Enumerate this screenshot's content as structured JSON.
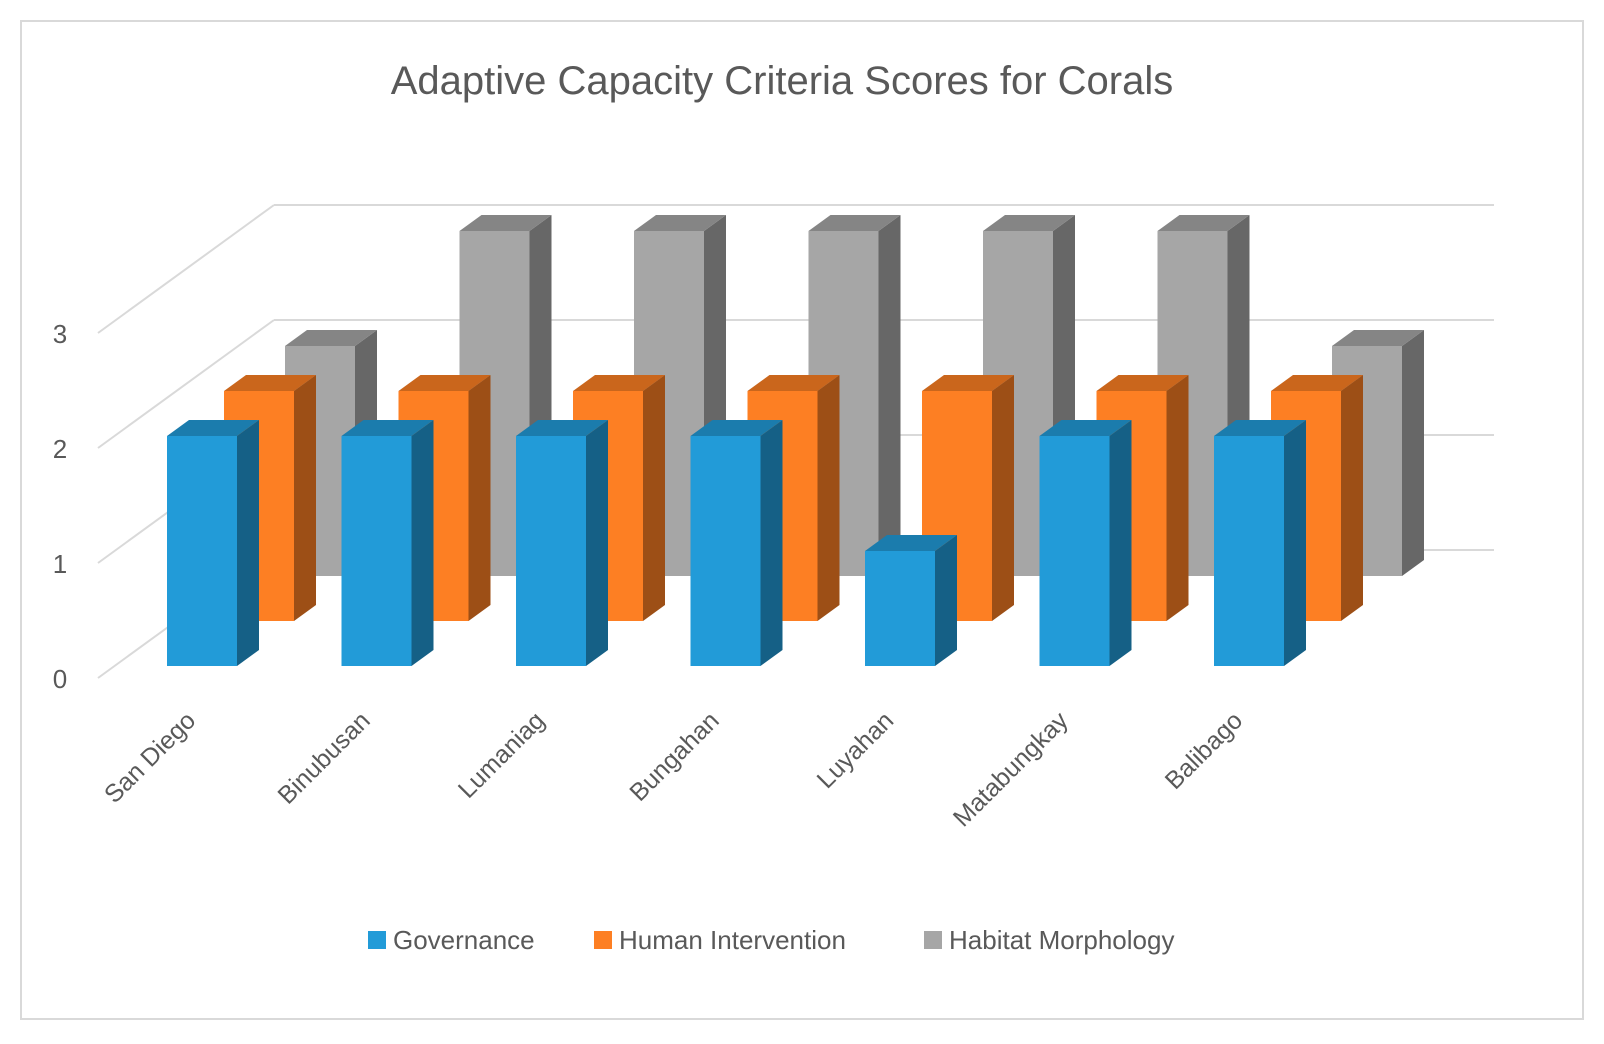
{
  "chart_data": {
    "type": "bar",
    "subtype": "3d-column",
    "title": "Adaptive Capacity Criteria Scores for Corals",
    "categories": [
      "San Diego",
      "Binubusan",
      "Lumaniag",
      "Bungahan",
      "Luyahan",
      "Matabungkay",
      "Balibago"
    ],
    "series": [
      {
        "name": "Governance",
        "color": "#229bd8",
        "values": [
          2,
          2,
          2,
          2,
          1,
          2,
          2
        ]
      },
      {
        "name": "Human Intervention",
        "color": "#fd7f23",
        "values": [
          2,
          2,
          2,
          2,
          2,
          2,
          2
        ]
      },
      {
        "name": "Habitat Morphology",
        "color": "#a6a6a6",
        "values": [
          2,
          3,
          3,
          3,
          3,
          3,
          2
        ]
      }
    ],
    "yticks": [
      "0",
      "1",
      "2",
      "3"
    ],
    "ylim": [
      0,
      3
    ],
    "xlabel": "",
    "ylabel": "",
    "grid": true,
    "legend": "bottom"
  }
}
